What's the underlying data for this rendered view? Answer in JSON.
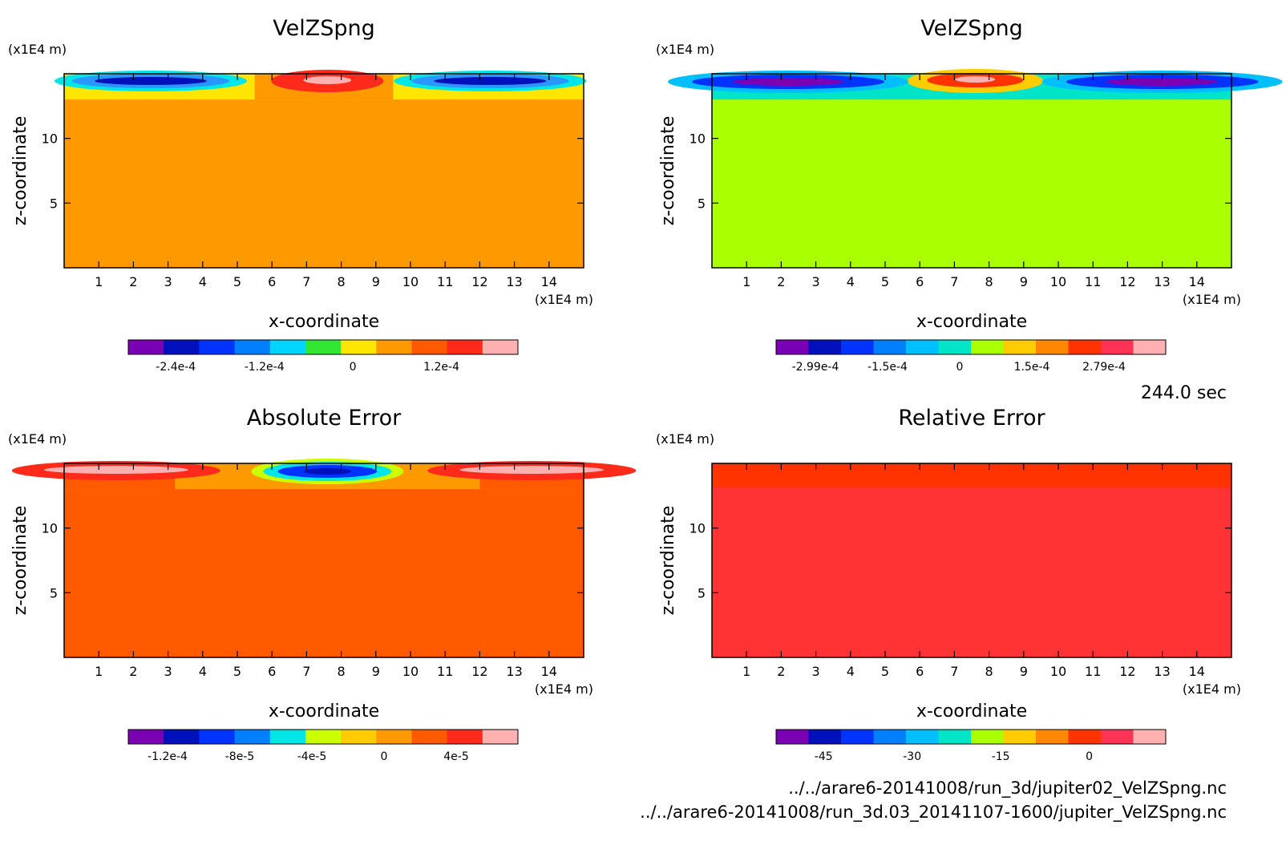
{
  "time_label": "244.0 sec",
  "footer": {
    "file_1": "../../arare6-20141008/run_3d/jupiter02_VelZSpng.nc",
    "file_2": "../../arare6-20141008/run_3d.03_20141107-1600/jupiter_VelZSpng.nc"
  },
  "chart_data": [
    {
      "type": "heatmap",
      "title": "VelZSpng",
      "xlabel": "x-coordinate",
      "ylabel": "z-coordinate",
      "x_unit": "(x1E4 m)",
      "y_unit": "(x1E4 m)",
      "xlim": [
        0,
        15
      ],
      "ylim": [
        0,
        15
      ],
      "x_ticks": [
        "1",
        "2",
        "3",
        "4",
        "5",
        "6",
        "7",
        "8",
        "9",
        "10",
        "11",
        "12",
        "13",
        "14"
      ],
      "y_ticks": [
        "5",
        "10"
      ],
      "background_color": "#ff9900",
      "lower_band": {
        "z_top": 13,
        "color": "#ff9900"
      },
      "upper_band_colors": [
        "#ffe600",
        "#ff9900",
        "#ff5a00",
        "#ff2a1a",
        "#ffb0b0",
        "#2a96ff",
        "#00e5e5",
        "#40e040",
        "#0033ff",
        "#0011bb"
      ],
      "colorbar": {
        "colors": [
          "#7b00b4",
          "#0011bb",
          "#0033ff",
          "#0080ff",
          "#00d4ff",
          "#33e633",
          "#ffe600",
          "#ff9900",
          "#ff5a00",
          "#ff2a1a",
          "#ffb0b0"
        ],
        "tick_labels": [
          "-2.4e-4",
          "-1.2e-4",
          "0",
          "1.2e-4"
        ]
      }
    },
    {
      "type": "heatmap",
      "title": "VelZSpng",
      "xlabel": "x-coordinate",
      "ylabel": "z-coordinate",
      "x_unit": "(x1E4 m)",
      "y_unit": "(x1E4 m)",
      "xlim": [
        0,
        15
      ],
      "ylim": [
        0,
        15
      ],
      "x_ticks": [
        "1",
        "2",
        "3",
        "4",
        "5",
        "6",
        "7",
        "8",
        "9",
        "10",
        "11",
        "12",
        "13",
        "14"
      ],
      "y_ticks": [
        "5",
        "10"
      ],
      "background_color": "#aaff00",
      "lower_band": {
        "z_top": 13,
        "color": "#aaff00"
      },
      "colorbar": {
        "colors": [
          "#7b00b4",
          "#0011bb",
          "#0033ff",
          "#0080ff",
          "#00bfff",
          "#00e5c8",
          "#aaff00",
          "#ffcc00",
          "#ff8800",
          "#ff3300",
          "#ff3355",
          "#ffb0b0"
        ],
        "tick_labels": [
          "-2.99e-4",
          "-1.5e-4",
          "0",
          "1.5e-4",
          "2.79e-4"
        ]
      }
    },
    {
      "type": "heatmap",
      "title": "Absolute Error",
      "xlabel": "x-coordinate",
      "ylabel": "z-coordinate",
      "x_unit": "(x1E4 m)",
      "y_unit": "(x1E4 m)",
      "xlim": [
        0,
        15
      ],
      "ylim": [
        0,
        15
      ],
      "x_ticks": [
        "1",
        "2",
        "3",
        "4",
        "5",
        "6",
        "7",
        "8",
        "9",
        "10",
        "11",
        "12",
        "13",
        "14"
      ],
      "y_ticks": [
        "5",
        "10"
      ],
      "background_color": "#ff5a00",
      "lower_band": {
        "z_top": 13,
        "color": "#ff5a00"
      },
      "colorbar": {
        "colors": [
          "#7b00b4",
          "#0011bb",
          "#0033ff",
          "#0080ff",
          "#00e5e5",
          "#ccff00",
          "#ffcc00",
          "#ff9900",
          "#ff5a00",
          "#ff2a1a",
          "#ffb0b0"
        ],
        "tick_labels": [
          "-1.2e-4",
          "-8e-5",
          "-4e-5",
          "0",
          "4e-5"
        ]
      }
    },
    {
      "type": "heatmap",
      "title": "Relative Error",
      "xlabel": "x-coordinate",
      "ylabel": "z-coordinate",
      "x_unit": "(x1E4 m)",
      "y_unit": "(x1E4 m)",
      "xlim": [
        0,
        15
      ],
      "ylim": [
        0,
        15
      ],
      "x_ticks": [
        "1",
        "2",
        "3",
        "4",
        "5",
        "6",
        "7",
        "8",
        "9",
        "10",
        "11",
        "12",
        "13",
        "14"
      ],
      "y_ticks": [
        "5",
        "10"
      ],
      "background_color": "#ff3333",
      "lower_band": {
        "z_top": 13,
        "color": "#ff3333"
      },
      "colorbar": {
        "colors": [
          "#7b00b4",
          "#0011bb",
          "#0033ff",
          "#0080ff",
          "#00bfff",
          "#00e5c8",
          "#aaff00",
          "#ffcc00",
          "#ff8800",
          "#ff3300",
          "#ff3355",
          "#ffb0b0"
        ],
        "tick_labels": [
          "-45",
          "-30",
          "-15",
          "0"
        ]
      }
    }
  ]
}
